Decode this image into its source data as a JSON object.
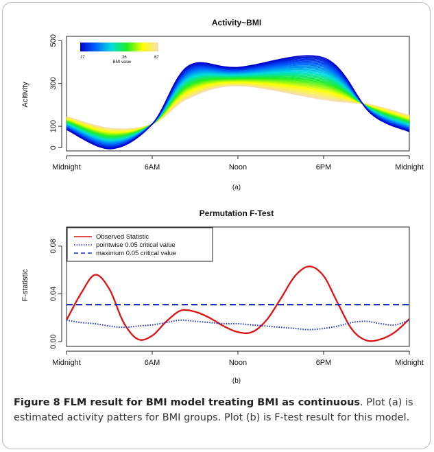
{
  "chart_data": [
    {
      "type": "line",
      "title": "Activity~BMI",
      "xlabel": "",
      "ylabel": "Acitivity",
      "sublabel": "(a)",
      "x_ticks": [
        "Midnight",
        "6AM",
        "Noon",
        "6PM",
        "Midnight"
      ],
      "x_hours": [
        0,
        6,
        12,
        18,
        24
      ],
      "xlim": [
        0,
        24
      ],
      "y_ticks": [
        0,
        100,
        300,
        500
      ],
      "ylim": [
        -15,
        520
      ],
      "color_key": {
        "label": "BMI value",
        "ticks": [
          17,
          36,
          67
        ],
        "range": [
          17,
          67
        ],
        "colors": [
          "#0000cc",
          "#0066ff",
          "#00dddd",
          "#22ee22",
          "#ffff00",
          "#f5deb3"
        ]
      },
      "series": [
        {
          "bmi": 17,
          "x": [
            0,
            3.1,
            6,
            8.5,
            12,
            18,
            21.3,
            24
          ],
          "y": [
            85,
            -5,
            110,
            380,
            375,
            420,
            160,
            75
          ]
        },
        {
          "bmi": 67,
          "x": [
            0,
            3.1,
            6,
            8.5,
            12,
            18,
            21.3,
            24
          ],
          "y": [
            145,
            90,
            110,
            230,
            290,
            225,
            200,
            150
          ]
        }
      ]
    },
    {
      "type": "line",
      "title": "Permutation F-Test",
      "xlabel": "",
      "ylabel": "F-statistic",
      "sublabel": "(b)",
      "x_ticks": [
        "Midnight",
        "6AM",
        "Noon",
        "6PM",
        "Midnight"
      ],
      "x_hours": [
        0,
        6,
        12,
        18,
        24
      ],
      "xlim": [
        0,
        24
      ],
      "y_ticks": [
        "0.00",
        "0.04",
        "0.08"
      ],
      "y_tick_values": [
        0,
        0.04,
        0.08
      ],
      "ylim": [
        -0.004,
        0.096
      ],
      "legend": "top-left",
      "series": [
        {
          "name": "Observed Statistic",
          "color": "#dd1111",
          "style": "solid",
          "x": [
            0,
            1,
            2,
            3,
            4,
            5,
            6,
            7,
            8,
            9,
            10,
            11,
            12,
            13,
            14,
            15,
            16,
            17,
            18,
            19,
            20,
            21,
            22,
            23,
            24
          ],
          "y": [
            0.018,
            0.04,
            0.056,
            0.044,
            0.016,
            0.002,
            0.005,
            0.017,
            0.026,
            0.025,
            0.02,
            0.013,
            0.008,
            0.008,
            0.018,
            0.036,
            0.055,
            0.063,
            0.055,
            0.032,
            0.01,
            0.001,
            0.002,
            0.008,
            0.019
          ]
        },
        {
          "name": "pointwise 0.05 critical value",
          "color": "#1a2acc",
          "style": "dotted",
          "x": [
            0,
            1,
            2,
            3,
            4,
            5,
            6,
            7,
            8,
            9,
            10,
            11,
            12,
            13,
            14,
            15,
            16,
            17,
            18,
            19,
            20,
            21,
            22,
            23,
            24
          ],
          "y": [
            0.018,
            0.016,
            0.015,
            0.013,
            0.012,
            0.013,
            0.014,
            0.016,
            0.018,
            0.017,
            0.016,
            0.015,
            0.015,
            0.014,
            0.013,
            0.012,
            0.011,
            0.01,
            0.011,
            0.013,
            0.016,
            0.017,
            0.015,
            0.014,
            0.018
          ]
        },
        {
          "name": "maximum 0.05 critical value",
          "color": "#1a2acc",
          "style": "dashed",
          "x": [
            0,
            24
          ],
          "y": [
            0.031,
            0.031
          ]
        }
      ]
    }
  ],
  "caption": {
    "title": "Figure 8 FLM result for BMI model treating BMI as continuous",
    "body": ". Plot (a) is estimated activity patters for BMI groups. Plot (b) is F-test result for this model."
  }
}
